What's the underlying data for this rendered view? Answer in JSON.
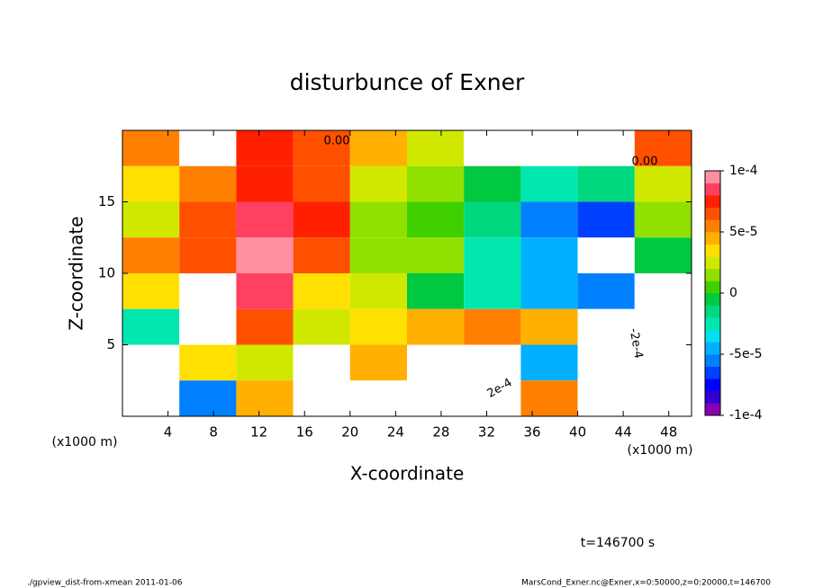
{
  "chart_data": {
    "type": "heatmap",
    "title": "disturbunce of Exner",
    "xlabel": "X-coordinate",
    "ylabel": "Z-coordinate",
    "xunit": "(x1000 m)",
    "yunit": "(x1000 m)",
    "xlim": [
      0,
      50
    ],
    "xticks": [
      4,
      8,
      12,
      16,
      20,
      24,
      28,
      32,
      36,
      40,
      44,
      48
    ],
    "ylim": [
      0,
      20
    ],
    "yticks": [
      5,
      10,
      15
    ],
    "x": [
      2.5,
      7.5,
      12.5,
      17.5,
      22.5,
      27.5,
      32.5,
      37.5,
      42.5,
      47.5
    ],
    "z": [
      18.75,
      16.25,
      13.75,
      11.25,
      8.75,
      6.25,
      3.75,
      1.25
    ],
    "values": [
      [
        5e-05,
        0.00012,
        7e-05,
        6e-05,
        4e-05,
        2e-05,
        0.00012,
        0.00012,
        0.00012,
        6e-05
      ],
      [
        3e-05,
        5e-05,
        7e-05,
        6e-05,
        2e-05,
        1e-05,
        -1e-05,
        -3e-05,
        -2e-05,
        2e-05
      ],
      [
        2e-05,
        6e-05,
        8e-05,
        7e-05,
        1e-05,
        0,
        -2e-05,
        -6e-05,
        -7e-05,
        1e-05
      ],
      [
        5e-05,
        6e-05,
        9e-05,
        6e-05,
        1e-05,
        1e-05,
        -3e-05,
        -5e-05,
        -0.00012,
        -1e-05
      ],
      [
        3e-05,
        0.00012,
        8e-05,
        3e-05,
        2e-05,
        -1e-05,
        -3e-05,
        -5e-05,
        -6e-05,
        0.00012
      ],
      [
        -3e-05,
        0.00012,
        6e-05,
        2e-05,
        3e-05,
        4e-05,
        5e-05,
        4e-05,
        0.00012,
        0.00012
      ],
      [
        0.00012,
        3e-05,
        2e-05,
        0.00012,
        4e-05,
        0.00012,
        0.00012,
        -5e-05,
        0.00012,
        0.00012
      ],
      [
        0.00012,
        -6e-05,
        4e-05,
        0.00012,
        0.00012,
        0.00012,
        0.00012,
        5e-05,
        0.00012,
        0.00012
      ]
    ],
    "clim": [
      -0.0001,
      0.0001
    ],
    "cticks": [
      {
        "value": -0.0001,
        "label": "-1e-4"
      },
      {
        "value": -5e-05,
        "label": "-5e-5"
      },
      0,
      {
        "value": 5e-05,
        "label": "5e-5"
      },
      {
        "value": 0.0001,
        "label": "1e-4"
      }
    ],
    "colors": [
      "#8a00b0",
      "#3000d0",
      "#0000ff",
      "#0040ff",
      "#0080ff",
      "#00b0ff",
      "#00e0f0",
      "#00e8b0",
      "#00d880",
      "#00c840",
      "#40d000",
      "#90e000",
      "#d0e800",
      "#ffe000",
      "#ffb000",
      "#ff8000",
      "#ff5000",
      "#ff2000",
      "#ff4060",
      "#ff90a0"
    ],
    "annotations": [
      "0.00",
      "0.00",
      "-2e-4",
      "2e-4"
    ],
    "time_label": "t=146700 s",
    "footer_left": "./gpview_dist-from-xmean  2011-01-06",
    "footer_right": "MarsCond_Exner.nc@Exner,x=0:50000,z=0:20000,t=146700"
  }
}
